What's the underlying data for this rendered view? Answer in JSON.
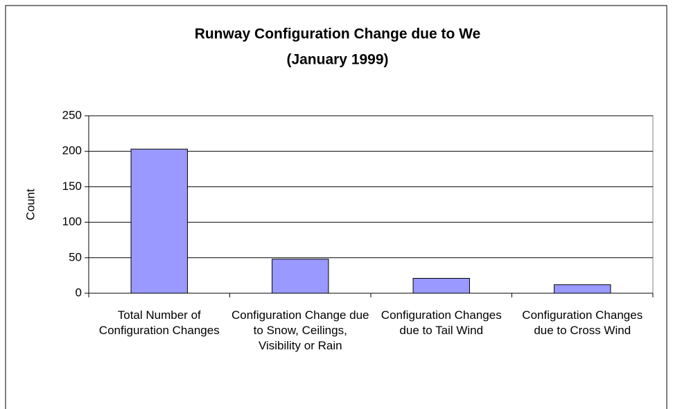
{
  "chart_data": {
    "type": "bar",
    "title": "Runway Configuration Change due to We",
    "subtitle": "(January 1999)",
    "y_label": "Count",
    "categories": [
      "Total Number of Configuration Changes",
      "Configuration Change due to Snow, Ceilings, Visibility or Rain",
      "Configuration Changes due to Tail Wind",
      "Configuration Changes due to Cross Wind"
    ],
    "values": [
      203,
      48,
      21,
      12
    ],
    "color": "#9999ff",
    "ylim": [
      0,
      250
    ],
    "yticks": [
      0,
      50,
      100,
      150,
      200,
      250
    ],
    "grid": true
  }
}
